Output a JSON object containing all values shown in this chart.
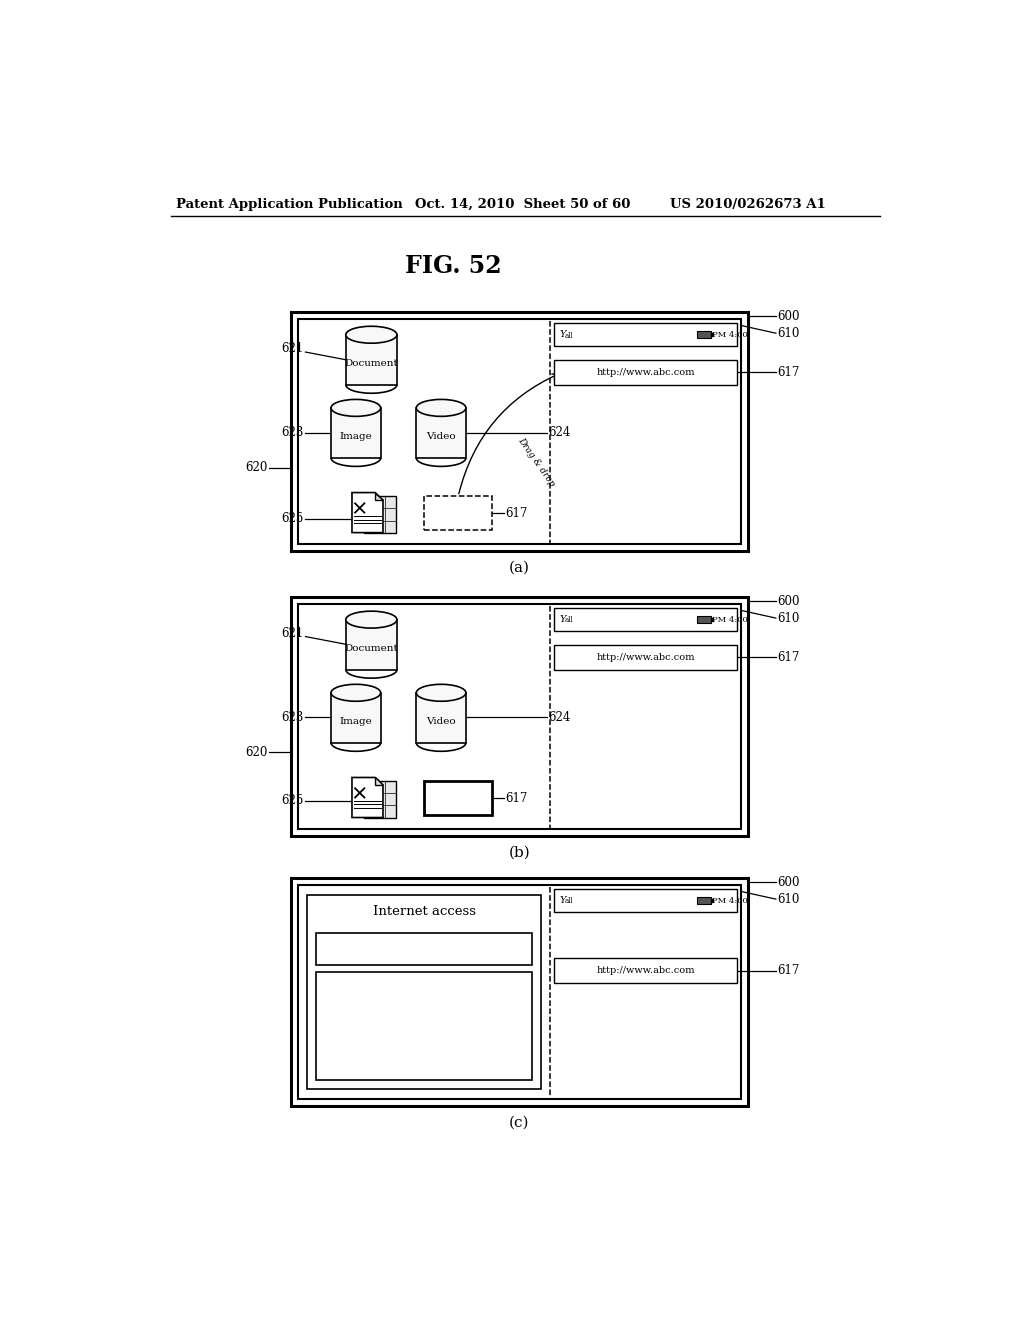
{
  "bg_color": "#ffffff",
  "header_left": "Patent Application Publication",
  "header_mid": "Oct. 14, 2010  Sheet 50 of 60",
  "header_right": "US 2010/0262673 A1",
  "fig_title": "FIG. 52",
  "panel_a_label": "(a)",
  "panel_b_label": "(b)",
  "panel_c_label": "(c)"
}
